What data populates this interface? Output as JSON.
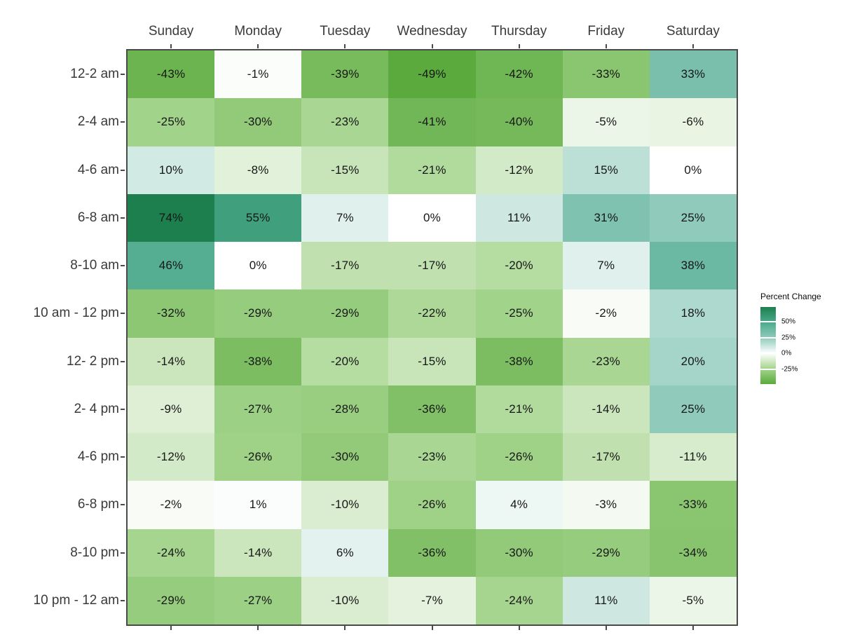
{
  "chart_data": {
    "type": "heatmap",
    "columns": [
      "Sunday",
      "Monday",
      "Tuesday",
      "Wednesday",
      "Thursday",
      "Friday",
      "Saturday"
    ],
    "rows": [
      "12-2 am",
      "2-4 am",
      "4-6 am",
      "6-8 am",
      "8-10 am",
      "10 am - 12 pm",
      "12- 2 pm",
      "2- 4 pm",
      "4-6 pm",
      "6-8 pm",
      "8-10 pm",
      "10 pm - 12 am"
    ],
    "values": [
      [
        -43,
        -1,
        -39,
        -49,
        -42,
        -33,
        33
      ],
      [
        -25,
        -30,
        -23,
        -41,
        -40,
        -5,
        -6
      ],
      [
        10,
        -8,
        -15,
        -21,
        -12,
        15,
        0
      ],
      [
        74,
        55,
        7,
        0,
        11,
        31,
        25
      ],
      [
        46,
        0,
        -17,
        -17,
        -20,
        7,
        38
      ],
      [
        -32,
        -29,
        -29,
        -22,
        -25,
        -2,
        18
      ],
      [
        -14,
        -38,
        -20,
        -15,
        -38,
        -23,
        20
      ],
      [
        -9,
        -27,
        -28,
        -36,
        -21,
        -14,
        25
      ],
      [
        -12,
        -26,
        -30,
        -23,
        -26,
        -17,
        -11
      ],
      [
        -2,
        1,
        -10,
        -26,
        4,
        -3,
        -33
      ],
      [
        -24,
        -14,
        6,
        -36,
        -30,
        -29,
        -34
      ],
      [
        -29,
        -27,
        -10,
        -7,
        -24,
        11,
        -5
      ]
    ],
    "value_suffix": "%",
    "legend": {
      "title": "Percent Change",
      "tick_labels": [
        "50%",
        "25%",
        "0%",
        "-25%"
      ],
      "tick_values": [
        50,
        25,
        0,
        -25
      ],
      "domain": [
        -49,
        74
      ],
      "position": "right"
    },
    "colorscale": [
      [
        -50,
        "#57a83a"
      ],
      [
        -25,
        "#a2d38a"
      ],
      [
        0,
        "#ffffff"
      ],
      [
        25,
        "#8fcabb"
      ],
      [
        50,
        "#4aa98a"
      ],
      [
        75,
        "#1a7d4a"
      ]
    ],
    "colors": {
      "background": "#e9f3e4",
      "panel_background": "#ffffff",
      "panel_border": "#4a4a4a",
      "axis_text": "#3a3a3a",
      "cell_text": "#161616",
      "tick_mark": "#4a4a4a"
    },
    "grid": false
  }
}
